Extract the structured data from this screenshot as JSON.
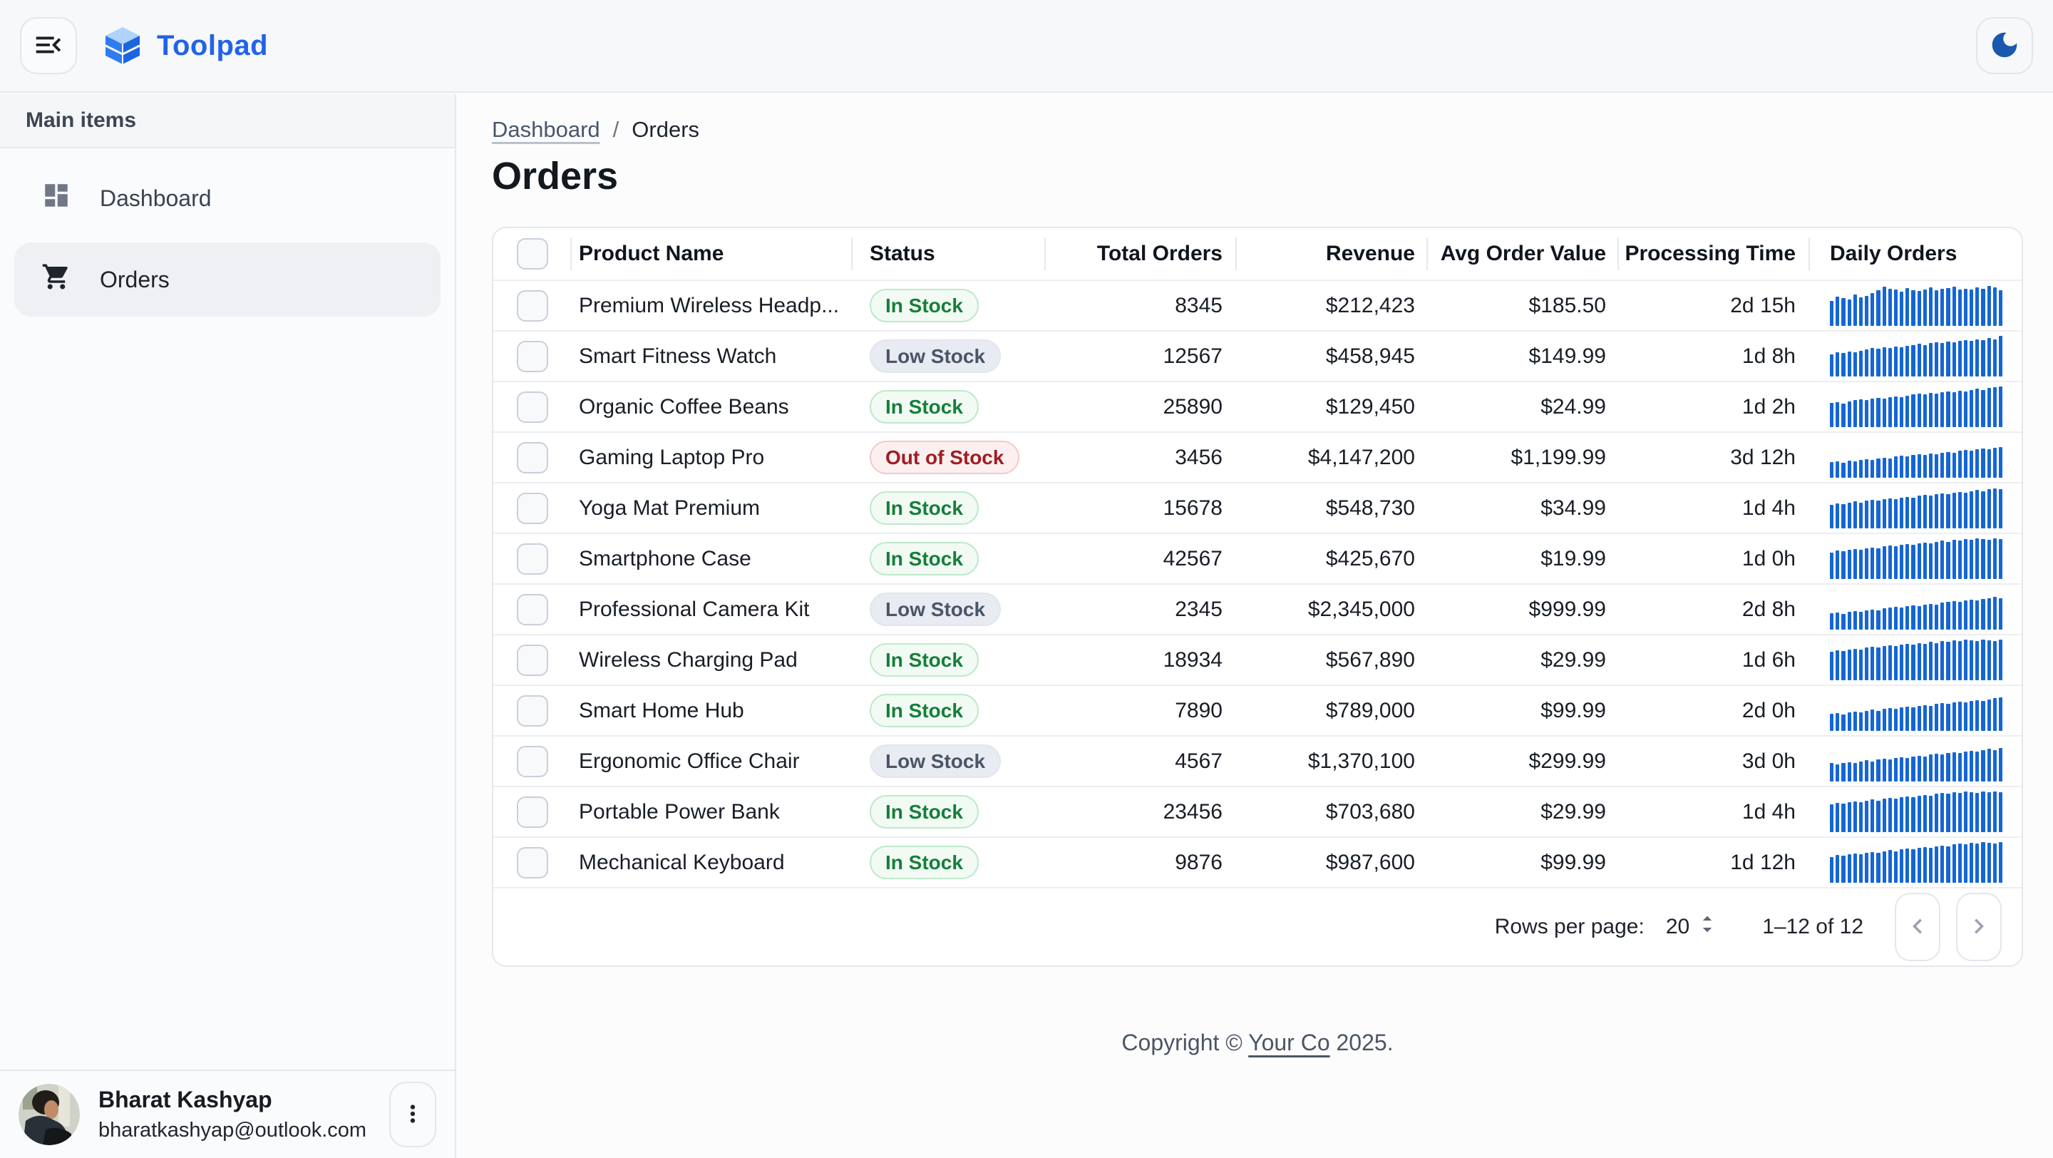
{
  "topbar": {
    "app_name": "Toolpad",
    "menu_icon": "menu-open-icon",
    "logo_icon": "toolpad-logo",
    "theme_icon": "moon-icon"
  },
  "colors": {
    "brand": "#2163E8",
    "spark_bar": "#1566D4",
    "status_in_stock": "#177E3B",
    "status_low_stock": "#4A5568",
    "status_out_of_stock": "#A01D24"
  },
  "sidebar": {
    "section": "Main items",
    "items": [
      {
        "label": "Dashboard",
        "icon": "dashboard-icon",
        "selected": false
      },
      {
        "label": "Orders",
        "icon": "cart-icon",
        "selected": true
      }
    ],
    "user": {
      "name": "Bharat Kashyap",
      "email": "bharatkashyap@outlook.com",
      "menu_icon": "more-vert-icon"
    }
  },
  "breadcrumb": {
    "link": "Dashboard",
    "separator": "/",
    "current": "Orders"
  },
  "page": {
    "title": "Orders"
  },
  "table": {
    "columns": [
      {
        "key": "name",
        "label": "Product Name"
      },
      {
        "key": "status",
        "label": "Status"
      },
      {
        "key": "total",
        "label": "Total Orders"
      },
      {
        "key": "revenue",
        "label": "Revenue"
      },
      {
        "key": "avg",
        "label": "Avg Order Value"
      },
      {
        "key": "time",
        "label": "Processing Time"
      },
      {
        "key": "spark",
        "label": "Daily Orders"
      }
    ],
    "rows": [
      {
        "name": "Premium Wireless Headp...",
        "status": "In Stock",
        "variant": "success",
        "total": "8345",
        "revenue": "$212,423",
        "avg": "$185.50",
        "time": "2d 15h",
        "spark": [
          62,
          72,
          68,
          65,
          78,
          70,
          74,
          80,
          88,
          97,
          92,
          90,
          85,
          93,
          88,
          86,
          90,
          94,
          88,
          91,
          93,
          96,
          90,
          92,
          90,
          94,
          91,
          98,
          95,
          88
        ]
      },
      {
        "name": "Smart Fitness Watch",
        "status": "Low Stock",
        "variant": "neutral",
        "total": "12567",
        "revenue": "$458,945",
        "avg": "$149.99",
        "time": "1d 8h",
        "spark": [
          55,
          60,
          58,
          62,
          60,
          64,
          66,
          70,
          68,
          72,
          70,
          74,
          72,
          76,
          78,
          80,
          78,
          82,
          84,
          82,
          86,
          84,
          88,
          90,
          88,
          92,
          90,
          94,
          92,
          100
        ]
      },
      {
        "name": "Organic Coffee Beans",
        "status": "In Stock",
        "variant": "success",
        "total": "25890",
        "revenue": "$129,450",
        "avg": "$24.99",
        "time": "1d 2h",
        "spark": [
          60,
          62,
          58,
          64,
          66,
          68,
          66,
          70,
          72,
          70,
          74,
          76,
          74,
          78,
          80,
          82,
          80,
          84,
          82,
          86,
          88,
          86,
          90,
          88,
          92,
          94,
          92,
          96,
          98,
          100
        ]
      },
      {
        "name": "Gaming Laptop Pro",
        "status": "Out of Stock",
        "variant": "error",
        "total": "3456",
        "revenue": "$4,147,200",
        "avg": "$1,199.99",
        "time": "3d 12h",
        "spark": [
          38,
          40,
          36,
          42,
          40,
          44,
          46,
          44,
          48,
          50,
          48,
          52,
          54,
          52,
          56,
          58,
          56,
          60,
          58,
          62,
          64,
          62,
          66,
          68,
          66,
          70,
          72,
          70,
          74,
          76
        ]
      },
      {
        "name": "Yoga Mat Premium",
        "status": "In Stock",
        "variant": "success",
        "total": "15678",
        "revenue": "$548,730",
        "avg": "$34.99",
        "time": "1d 4h",
        "spark": [
          58,
          62,
          60,
          64,
          66,
          64,
          68,
          70,
          68,
          72,
          74,
          72,
          76,
          78,
          76,
          80,
          82,
          80,
          84,
          86,
          84,
          88,
          90,
          88,
          92,
          94,
          92,
          96,
          98,
          96
        ]
      },
      {
        "name": "Smartphone Case",
        "status": "In Stock",
        "variant": "success",
        "total": "42567",
        "revenue": "$425,670",
        "avg": "$19.99",
        "time": "1d 0h",
        "spark": [
          65,
          70,
          68,
          72,
          74,
          72,
          76,
          78,
          76,
          80,
          82,
          80,
          84,
          86,
          84,
          88,
          90,
          88,
          92,
          94,
          92,
          96,
          94,
          98,
          96,
          100,
          98,
          96,
          100,
          98
        ]
      },
      {
        "name": "Professional Camera Kit",
        "status": "Low Stock",
        "variant": "neutral",
        "total": "2345",
        "revenue": "$2,345,000",
        "avg": "$999.99",
        "time": "2d 8h",
        "spark": [
          40,
          42,
          38,
          44,
          46,
          44,
          48,
          50,
          48,
          52,
          54,
          56,
          54,
          58,
          60,
          58,
          62,
          64,
          62,
          66,
          68,
          70,
          68,
          72,
          74,
          72,
          76,
          78,
          80,
          78
        ]
      },
      {
        "name": "Wireless Charging Pad",
        "status": "In Stock",
        "variant": "success",
        "total": "18934",
        "revenue": "$567,890",
        "avg": "$29.99",
        "time": "1d 6h",
        "spark": [
          70,
          74,
          72,
          76,
          78,
          76,
          80,
          82,
          80,
          84,
          86,
          84,
          88,
          90,
          88,
          92,
          90,
          94,
          92,
          96,
          94,
          98,
          96,
          100,
          98,
          96,
          100,
          98,
          96,
          100
        ]
      },
      {
        "name": "Smart Home Hub",
        "status": "In Stock",
        "variant": "success",
        "total": "7890",
        "revenue": "$789,000",
        "avg": "$99.99",
        "time": "2d 0h",
        "spark": [
          42,
          44,
          40,
          46,
          48,
          46,
          50,
          52,
          50,
          54,
          56,
          54,
          58,
          60,
          58,
          62,
          64,
          62,
          66,
          68,
          66,
          70,
          72,
          70,
          74,
          76,
          74,
          78,
          80,
          82
        ]
      },
      {
        "name": "Ergonomic Office Chair",
        "status": "Low Stock",
        "variant": "neutral",
        "total": "4567",
        "revenue": "$1,370,100",
        "avg": "$299.99",
        "time": "3d 0h",
        "spark": [
          45,
          42,
          46,
          48,
          46,
          50,
          52,
          50,
          54,
          56,
          54,
          58,
          60,
          58,
          62,
          64,
          62,
          66,
          68,
          66,
          70,
          72,
          70,
          74,
          76,
          74,
          78,
          80,
          78,
          82
        ]
      },
      {
        "name": "Portable Power Bank",
        "status": "In Stock",
        "variant": "success",
        "total": "23456",
        "revenue": "$703,680",
        "avg": "$29.99",
        "time": "1d 4h",
        "spark": [
          68,
          72,
          70,
          74,
          76,
          74,
          78,
          80,
          78,
          82,
          84,
          82,
          86,
          88,
          86,
          90,
          92,
          90,
          94,
          96,
          94,
          98,
          96,
          100,
          98,
          96,
          100,
          98,
          100,
          98
        ]
      },
      {
        "name": "Mechanical Keyboard",
        "status": "In Stock",
        "variant": "success",
        "total": "9876",
        "revenue": "$987,600",
        "avg": "$99.99",
        "time": "1d 12h",
        "spark": [
          64,
          68,
          66,
          70,
          72,
          70,
          74,
          76,
          74,
          78,
          80,
          78,
          82,
          84,
          82,
          86,
          88,
          86,
          90,
          92,
          90,
          94,
          96,
          94,
          98,
          96,
          100,
          98,
          96,
          100
        ]
      }
    ]
  },
  "pagination": {
    "rows_per_page_label": "Rows per page:",
    "rows_per_page": "20",
    "range": "1–12 of 12",
    "prev_icon": "chevron-left-icon",
    "next_icon": "chevron-right-icon"
  },
  "footer": {
    "prefix": "Copyright © ",
    "link": "Your Co",
    "suffix": " 2025."
  }
}
